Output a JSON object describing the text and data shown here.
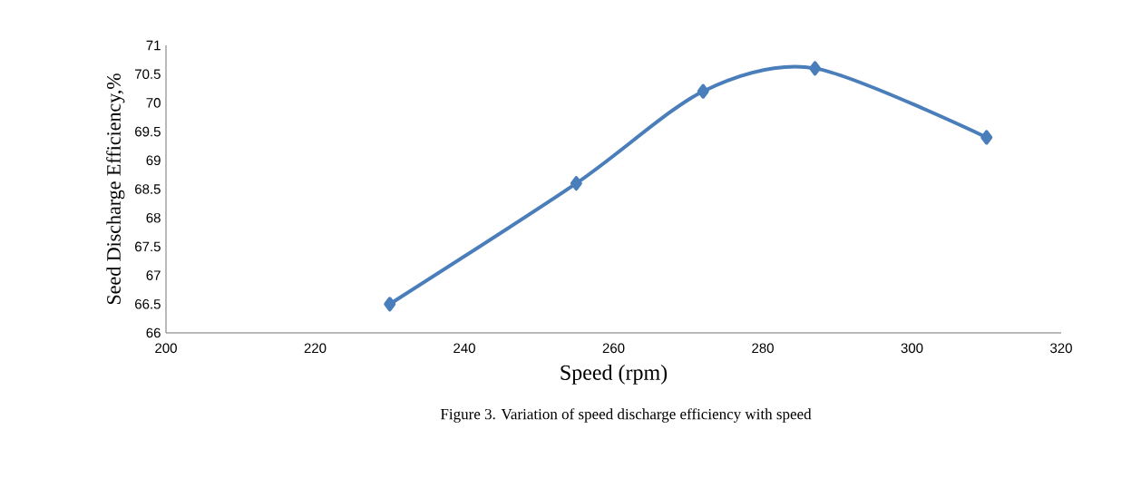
{
  "chart_data": {
    "type": "line",
    "xlabel": "Speed  (rpm)",
    "ylabel": "Seed Discharge Efficiency,%",
    "annotations": [
      "Figure 3. Variation of speed discharge efficiency with speed"
    ],
    "x": [
      230,
      255,
      272,
      287,
      310
    ],
    "series": [
      {
        "color": "#4a7ebb",
        "values": [
          66.5,
          68.6,
          70.2,
          70.6,
          69.4
        ]
      }
    ],
    "xlim": [
      200,
      320
    ],
    "ylim": [
      66,
      71
    ],
    "xticks": [
      200,
      220,
      240,
      260,
      280,
      300,
      320
    ],
    "yticks": [
      66,
      66.5,
      67,
      67.5,
      68,
      68.5,
      69,
      69.5,
      70,
      70.5,
      71
    ],
    "grid": false,
    "legend": false,
    "marker": "diamond",
    "line_style": "solid"
  }
}
